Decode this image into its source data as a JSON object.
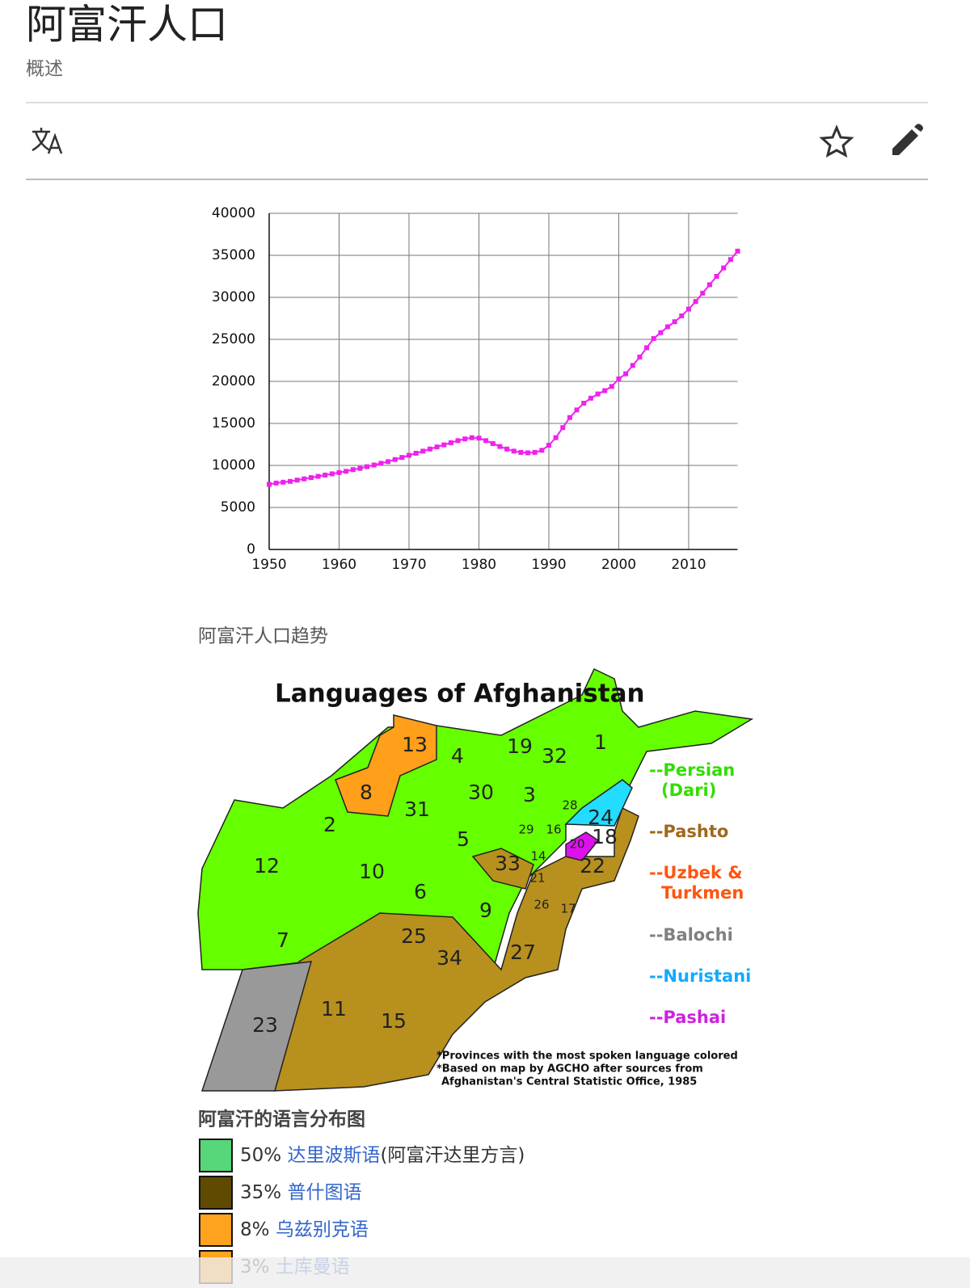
{
  "header": {
    "title": "阿富汗人口",
    "subtitle": "概述"
  },
  "chart_data": {
    "type": "line",
    "caption": "阿富汗人口趋势",
    "x": [
      1950,
      1951,
      1952,
      1953,
      1954,
      1955,
      1956,
      1957,
      1958,
      1959,
      1960,
      1961,
      1962,
      1963,
      1964,
      1965,
      1966,
      1967,
      1968,
      1969,
      1970,
      1971,
      1972,
      1973,
      1974,
      1975,
      1976,
      1977,
      1978,
      1979,
      1980,
      1981,
      1982,
      1983,
      1984,
      1985,
      1986,
      1987,
      1988,
      1989,
      1990,
      1991,
      1992,
      1993,
      1994,
      1995,
      1996,
      1997,
      1998,
      1999,
      2000,
      2001,
      2002,
      2003,
      2004,
      2005,
      2006,
      2007,
      2008,
      2009,
      2010,
      2011,
      2012,
      2013,
      2014,
      2015,
      2016,
      2017
    ],
    "series": [
      {
        "color": "#ee22ee",
        "values": [
          7750,
          7900,
          8000,
          8100,
          8250,
          8400,
          8550,
          8700,
          8850,
          9000,
          9150,
          9300,
          9500,
          9650,
          9850,
          10050,
          10250,
          10450,
          10700,
          10950,
          11200,
          11450,
          11700,
          11950,
          12200,
          12450,
          12700,
          12950,
          13150,
          13300,
          13250,
          12950,
          12600,
          12250,
          11950,
          11700,
          11550,
          11500,
          11550,
          11800,
          12400,
          13300,
          14500,
          15700,
          16600,
          17400,
          18000,
          18500,
          18900,
          19400,
          20300,
          20900,
          21900,
          22900,
          24000,
          25100,
          25800,
          26500,
          27100,
          27800,
          28600,
          29500,
          30500,
          31500,
          32500,
          33500,
          34500,
          35500
        ]
      }
    ],
    "xlim": [
      1950,
      2017
    ],
    "ylim": [
      0,
      40000
    ],
    "xticks": [
      1950,
      1960,
      1970,
      1980,
      1990,
      2000,
      2010
    ],
    "yticks": [
      0,
      5000,
      10000,
      15000,
      20000,
      25000,
      30000,
      35000,
      40000
    ],
    "grid": true
  },
  "map": {
    "title": "Languages of Afghanistan",
    "provinces": [
      1,
      2,
      3,
      4,
      5,
      6,
      7,
      8,
      9,
      10,
      11,
      12,
      13,
      14,
      15,
      16,
      17,
      18,
      19,
      20,
      21,
      22,
      23,
      24,
      25,
      26,
      27,
      28,
      29,
      30,
      31,
      32,
      33,
      34
    ],
    "legend": [
      {
        "lines": [
          "--Persian",
          "(Dari)"
        ],
        "color": "#33dd00"
      },
      {
        "lines": [
          "--Pashto"
        ],
        "color": "#a0681c"
      },
      {
        "lines": [
          "--Uzbek &",
          "Turkmen"
        ],
        "color": "#ff5511"
      },
      {
        "lines": [
          "--Balochi"
        ],
        "color": "#808080"
      },
      {
        "lines": [
          "--Nuristani"
        ],
        "color": "#11aaff"
      },
      {
        "lines": [
          "--Pashai"
        ],
        "color": "#cc22dd"
      }
    ],
    "notes": [
      "*Provinces with the most spoken language colored",
      "*Based on map by AGCHO after sources from",
      "Afghanistan's Central Statistic Office, 1985"
    ],
    "caption": "阿富汗的语言分布图"
  },
  "languages": [
    {
      "percent": "50%",
      "name": "达里波斯语",
      "note": "(阿富汗达里方言)",
      "color": "#55d77a"
    },
    {
      "percent": "35%",
      "name": "普什图语",
      "color": "#5e4a00"
    },
    {
      "percent": "8%",
      "name": "乌兹别克语",
      "color": "#ffa31f"
    },
    {
      "percent": "3%",
      "name": "土库曼语",
      "color": "#ffa31f"
    }
  ]
}
